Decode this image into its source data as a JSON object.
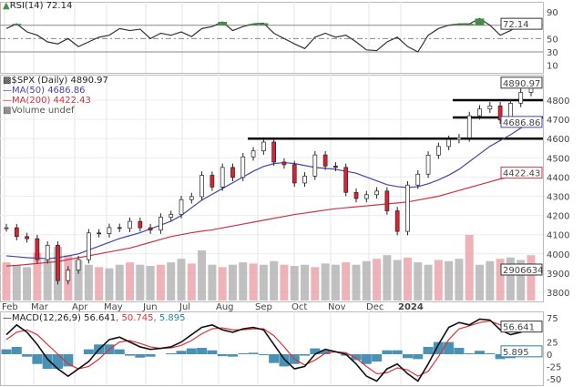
{
  "chart_data": [
    {
      "type": "line",
      "panel": "rsi",
      "title": "RSI(14)",
      "last_value": "72.14",
      "yticks": [
        90,
        50,
        30,
        10
      ],
      "ylim": [
        0,
        100
      ],
      "reference_lines": [
        70,
        50,
        30
      ],
      "values": [
        65,
        72,
        60,
        55,
        45,
        42,
        50,
        38,
        45,
        52,
        55,
        65,
        62,
        64,
        50,
        58,
        55,
        60,
        53,
        65,
        68,
        75,
        62,
        68,
        72,
        73,
        58,
        50,
        42,
        35,
        52,
        58,
        52,
        55,
        45,
        33,
        32,
        45,
        52,
        38,
        30,
        55,
        65,
        70,
        72,
        72,
        80,
        70,
        55,
        62,
        72,
        72.14
      ],
      "color": "#333333",
      "overbought_fill": "#4a8a4a"
    },
    {
      "type": "candlestick",
      "panel": "price",
      "title": "$SPX (Daily)",
      "last_value": "4890.97",
      "ylim": [
        3780,
        4910
      ],
      "yticks": [
        4800,
        4700,
        4600,
        4500,
        4400,
        4300,
        4200,
        4100,
        4000,
        3900,
        3800
      ],
      "xticks": [
        "Feb",
        "Mar",
        "Apr",
        "May",
        "Jun",
        "Jul",
        "Aug",
        "Sep",
        "Oct",
        "Nov",
        "Dec",
        "2024"
      ],
      "close": [
        4136,
        4090,
        4079,
        3970,
        4045,
        3861,
        3916,
        3970,
        4109,
        4105,
        4137,
        4133,
        4169,
        4136,
        4124,
        4191,
        4205,
        4282,
        4298,
        4409,
        4348,
        4450,
        4398,
        4505,
        4536,
        4582,
        4478,
        4464,
        4369,
        4405,
        4515,
        4457,
        4450,
        4320,
        4288,
        4308,
        4327,
        4224,
        4117,
        4358,
        4415,
        4514,
        4559,
        4595,
        4604,
        4719,
        4754,
        4770,
        4697,
        4784,
        4840,
        4890.97
      ],
      "series": [
        {
          "name": "MA(50)",
          "last_value": "4686.86",
          "color": "#4444aa",
          "values": [
            3990,
            3985,
            3980,
            3978,
            3975,
            3980,
            3990,
            4000,
            4020,
            4040,
            4060,
            4080,
            4095,
            4110,
            4130,
            4150,
            4170,
            4200,
            4240,
            4280,
            4310,
            4340,
            4370,
            4400,
            4430,
            4455,
            4470,
            4475,
            4470,
            4460,
            4450,
            4445,
            4440,
            4430,
            4420,
            4400,
            4380,
            4360,
            4350,
            4345,
            4350,
            4365,
            4385,
            4410,
            4440,
            4480,
            4520,
            4560,
            4590,
            4620,
            4655,
            4686.86
          ]
        },
        {
          "name": "MA(200)",
          "last_value": "4422.43",
          "color": "#cc3344",
          "values": [
            3937,
            3940,
            3945,
            3950,
            3955,
            3960,
            3970,
            3980,
            3990,
            4000,
            4010,
            4020,
            4030,
            4045,
            4060,
            4075,
            4090,
            4100,
            4110,
            4118,
            4125,
            4135,
            4145,
            4155,
            4165,
            4175,
            4185,
            4195,
            4205,
            4212,
            4220,
            4228,
            4235,
            4240,
            4245,
            4250,
            4255,
            4260,
            4265,
            4270,
            4280,
            4290,
            4300,
            4315,
            4330,
            4345,
            4360,
            4375,
            4390,
            4400,
            4412,
            4422.43
          ]
        }
      ],
      "horizontal_levels": [
        4600,
        4710,
        4800
      ],
      "volume_label": "Volume undef",
      "volume_last": "2906634",
      "volume": [
        32,
        30,
        28,
        40,
        34,
        45,
        38,
        34,
        30,
        28,
        27,
        30,
        32,
        30,
        29,
        30,
        32,
        35,
        31,
        42,
        30,
        28,
        30,
        32,
        31,
        30,
        33,
        30,
        29,
        30,
        28,
        31,
        30,
        32,
        30,
        33,
        35,
        38,
        34,
        36,
        32,
        30,
        34,
        33,
        35,
        55,
        30,
        33,
        35,
        36,
        34,
        38
      ]
    },
    {
      "type": "line",
      "panel": "macd",
      "title": "MACD(12,26,9)",
      "legend_values": [
        "56.641",
        "50.745",
        "5.895"
      ],
      "yticks": [
        75,
        25,
        0,
        -25,
        -50
      ],
      "ylim": [
        -60,
        90
      ],
      "series": [
        {
          "name": "MACD",
          "color": "#111111",
          "values": [
            40,
            60,
            45,
            20,
            -10,
            -30,
            -45,
            -30,
            -15,
            10,
            30,
            35,
            25,
            15,
            10,
            12,
            15,
            25,
            40,
            55,
            60,
            50,
            45,
            52,
            55,
            50,
            20,
            -10,
            -30,
            -25,
            0,
            10,
            5,
            0,
            -20,
            -45,
            -55,
            -30,
            -20,
            -40,
            -55,
            -20,
            20,
            55,
            65,
            60,
            72,
            70,
            50,
            40,
            45,
            56.641
          ]
        },
        {
          "name": "Signal",
          "color": "#dd3333",
          "values": [
            30,
            45,
            50,
            40,
            20,
            0,
            -20,
            -30,
            -25,
            -10,
            10,
            25,
            28,
            22,
            15,
            12,
            13,
            18,
            28,
            42,
            52,
            54,
            50,
            50,
            52,
            52,
            38,
            15,
            -10,
            -22,
            -12,
            2,
            5,
            3,
            -8,
            -25,
            -40,
            -38,
            -28,
            -32,
            -45,
            -35,
            -5,
            30,
            52,
            58,
            65,
            68,
            60,
            48,
            45,
            50.745
          ]
        }
      ],
      "histogram_color": "#2a7fa8"
    }
  ]
}
